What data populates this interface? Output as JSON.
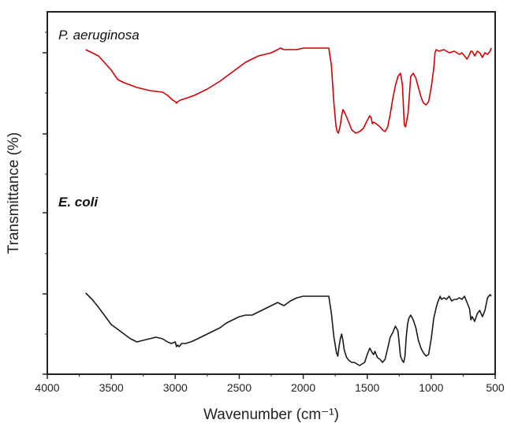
{
  "chart_data": {
    "type": "line",
    "title": "",
    "xlabel": "Wavenumber (cm⁻¹)",
    "ylabel": "Transmittance (%)",
    "xlim": [
      4000,
      500
    ],
    "x_reversed": true,
    "y_tick_labels": false,
    "x_ticks": [
      {
        "value": 4000,
        "label": "4000"
      },
      {
        "value": 3500,
        "label": "3500"
      },
      {
        "value": 3000,
        "label": "3000"
      },
      {
        "value": 2500,
        "label": "2500"
      },
      {
        "value": 2000,
        "label": "2000"
      },
      {
        "value": 1500,
        "label": "1500"
      },
      {
        "value": 1000,
        "label": "1000"
      },
      {
        "value": 500,
        "label": "500"
      }
    ],
    "grid": false,
    "legend": "none (series labels drawn inside plot)",
    "series": [
      {
        "name": "P. aeruginosa",
        "color": "#d40000",
        "x": [
          3700,
          3600,
          3500,
          3450,
          3400,
          3300,
          3200,
          3100,
          3060,
          3020,
          3000,
          2990,
          2980,
          2960,
          2920,
          2850,
          2750,
          2650,
          2550,
          2450,
          2350,
          2250,
          2200,
          2180,
          2150,
          2100,
          2050,
          2000,
          1950,
          1900,
          1850,
          1800,
          1780,
          1760,
          1745,
          1735,
          1725,
          1710,
          1700,
          1690,
          1675,
          1655,
          1620,
          1590,
          1560,
          1530,
          1500,
          1480,
          1470,
          1460,
          1450,
          1430,
          1400,
          1380,
          1360,
          1340,
          1320,
          1300,
          1280,
          1260,
          1240,
          1225,
          1210,
          1200,
          1180,
          1160,
          1140,
          1120,
          1100,
          1080,
          1060,
          1040,
          1020,
          1000,
          980,
          970,
          960,
          940,
          900,
          860,
          820,
          800,
          780,
          760,
          740,
          720,
          700,
          690,
          680,
          660,
          640,
          620,
          600,
          580,
          560,
          540,
          530
        ],
        "y": [
          96,
          92,
          83,
          77,
          75,
          72,
          70,
          69,
          67,
          64,
          63,
          62,
          63,
          64,
          65,
          67,
          71,
          76,
          82,
          88,
          92,
          94,
          96,
          97,
          96,
          96,
          96,
          97,
          97,
          97,
          97,
          97,
          86,
          62,
          48,
          44,
          43,
          48,
          54,
          58,
          56,
          52,
          45,
          43,
          44,
          46,
          51,
          54,
          53,
          49,
          50,
          49,
          47,
          45,
          44,
          47,
          55,
          65,
          73,
          79,
          81,
          74,
          48,
          47,
          56,
          79,
          81,
          78,
          72,
          66,
          62,
          61,
          63,
          72,
          84,
          94,
          96,
          95,
          96,
          94,
          95,
          94,
          93,
          94,
          92,
          90,
          93,
          95,
          95,
          92,
          95,
          94,
          91,
          94,
          93,
          95,
          97
        ]
      },
      {
        "name": "E. coli",
        "color": "#1a1a1a",
        "x": [
          3700,
          3650,
          3600,
          3500,
          3450,
          3400,
          3350,
          3300,
          3250,
          3200,
          3150,
          3100,
          3060,
          3030,
          3000,
          2990,
          2980,
          2970,
          2950,
          2920,
          2880,
          2850,
          2800,
          2750,
          2700,
          2650,
          2600,
          2550,
          2500,
          2450,
          2400,
          2350,
          2300,
          2250,
          2200,
          2150,
          2100,
          2050,
          2000,
          1950,
          1900,
          1850,
          1800,
          1780,
          1760,
          1740,
          1730,
          1720,
          1710,
          1700,
          1690,
          1680,
          1660,
          1640,
          1620,
          1600,
          1580,
          1560,
          1540,
          1520,
          1500,
          1480,
          1460,
          1450,
          1440,
          1420,
          1400,
          1380,
          1360,
          1340,
          1320,
          1300,
          1280,
          1260,
          1240,
          1225,
          1215,
          1205,
          1195,
          1185,
          1175,
          1160,
          1140,
          1120,
          1100,
          1080,
          1060,
          1040,
          1020,
          1000,
          980,
          960,
          950,
          940,
          930,
          920,
          900,
          880,
          860,
          840,
          820,
          800,
          780,
          760,
          740,
          720,
          700,
          690,
          680,
          660,
          640,
          620,
          600,
          580,
          560,
          540,
          530
        ],
        "y": [
          48,
          44,
          39,
          28,
          25,
          22,
          19,
          17,
          18,
          19,
          20,
          19,
          17,
          16,
          17,
          14,
          15,
          14,
          16,
          16,
          17,
          18,
          20,
          22,
          24,
          26,
          29,
          31,
          33,
          34,
          34,
          36,
          38,
          40,
          42,
          40,
          43,
          45,
          46,
          46,
          46,
          46,
          46,
          35,
          20,
          10,
          8,
          14,
          19,
          22,
          18,
          12,
          7,
          5,
          4,
          4,
          3,
          2,
          3,
          4,
          9,
          13,
          10,
          9,
          11,
          7,
          6,
          4,
          6,
          13,
          20,
          23,
          27,
          24,
          8,
          5,
          4,
          8,
          20,
          28,
          32,
          34,
          31,
          26,
          18,
          13,
          10,
          8,
          9,
          19,
          32,
          39,
          42,
          44,
          46,
          44,
          45,
          44,
          46,
          43,
          44,
          44,
          45,
          44,
          46,
          42,
          38,
          31,
          33,
          30,
          35,
          37,
          33,
          37,
          45,
          47,
          46
        ]
      }
    ]
  }
}
